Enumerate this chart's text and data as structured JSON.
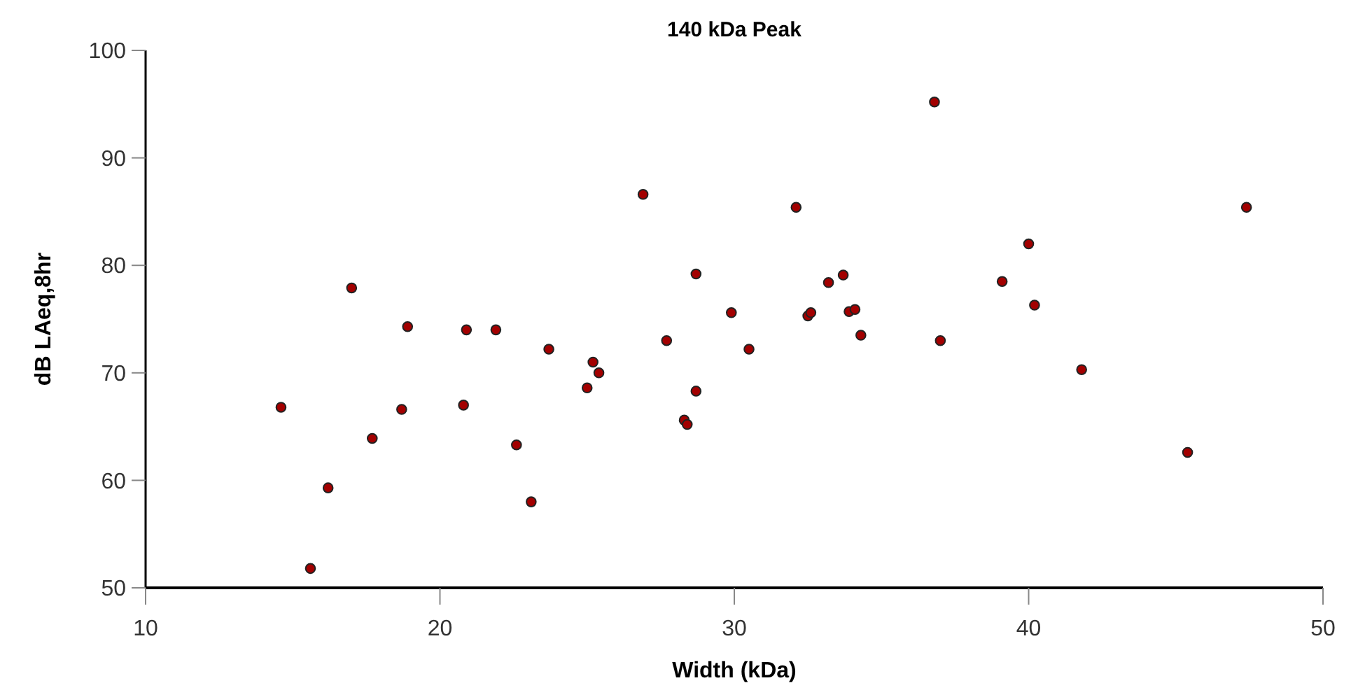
{
  "chart_data": {
    "type": "scatter",
    "title": "140 kDa Peak",
    "xlabel": "Width (kDa)",
    "ylabel": "dB LAeq,8hr",
    "xlim": [
      10,
      50
    ],
    "xticks": [
      10,
      20,
      30,
      40,
      50
    ],
    "ylim": [
      50,
      100
    ],
    "yticks": [
      50,
      60,
      70,
      80,
      90,
      100
    ],
    "grid": false,
    "marker": "circle",
    "series": [
      {
        "color": "#a30000",
        "x": [
          14.6,
          15.6,
          16.2,
          17.0,
          17.7,
          18.7,
          18.9,
          20.8,
          20.9,
          21.9,
          22.6,
          23.1,
          23.7,
          25.0,
          25.2,
          25.4,
          26.9,
          27.7,
          28.3,
          28.4,
          28.7,
          28.7,
          29.9,
          30.5,
          32.1,
          32.5,
          32.6,
          33.2,
          33.7,
          33.9,
          34.1,
          34.3,
          36.8,
          37.0,
          39.1,
          40.0,
          40.2,
          41.8,
          45.4,
          47.4
        ],
        "values": [
          66.8,
          51.8,
          59.3,
          77.9,
          63.9,
          66.6,
          74.3,
          67.0,
          74.0,
          74.0,
          63.3,
          58.0,
          72.2,
          68.6,
          71.0,
          70.0,
          86.6,
          73.0,
          65.6,
          65.2,
          68.3,
          79.2,
          75.6,
          72.2,
          85.4,
          75.3,
          75.6,
          78.4,
          79.1,
          75.7,
          75.9,
          73.5,
          95.2,
          73.0,
          78.5,
          82.0,
          76.3,
          70.3,
          62.6,
          85.4
        ]
      }
    ]
  }
}
